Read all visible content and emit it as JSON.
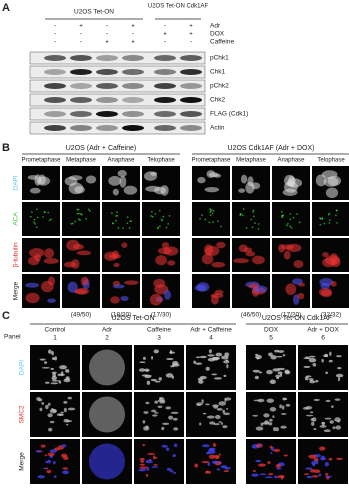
{
  "panel_a": {
    "label": "A",
    "groups": [
      "U2OS Tet-ON",
      "U2OS Tet-ON Cdk1AF"
    ],
    "treatments": [
      {
        "name": "Adr",
        "signs": [
          "-",
          "+",
          "-",
          "+",
          "-",
          "+"
        ]
      },
      {
        "name": "DOX",
        "signs": [
          "-",
          "-",
          "-",
          "-",
          "+",
          "+"
        ]
      },
      {
        "name": "Caffeine",
        "signs": [
          "-",
          "-",
          "+",
          "+",
          "-",
          "-"
        ]
      }
    ],
    "blots": [
      "pChk1",
      "Chk1",
      "pChk2",
      "Chk2",
      "FLAG (Cdk1)",
      "Actin"
    ]
  },
  "panel_b": {
    "label": "B",
    "groups": [
      "U2OS (Adr + Caffeine)",
      "U2OS Cdk1AF (Adr + DOX)"
    ],
    "phases": [
      "Prometaphase",
      "Metaphase",
      "Anaphase",
      "Telophase",
      "Prometaphase",
      "Metaphase",
      "Anaphase",
      "Telophase"
    ],
    "stains": [
      "DAPI",
      "ACA",
      "β-tubulin",
      "Merge"
    ],
    "counts": [
      "(49/50)",
      "(18/20)",
      "(17/30)",
      "(46/50)",
      "(17/20)",
      "(32/32)"
    ]
  },
  "panel_c": {
    "label": "C",
    "groups": [
      "U2OS Tet-ON",
      "U2OS Tet-ON Cdk1AF"
    ],
    "panel_heading": "Panel",
    "conditions": [
      "Control",
      "Adr",
      "Caffeine",
      "Adr + Caffeine",
      "DOX",
      "Adr + DOX"
    ],
    "panel_numbers": [
      "1",
      "2",
      "3",
      "4",
      "5",
      "6"
    ],
    "stains": [
      "DAPI",
      "SMC2",
      "Merge"
    ]
  }
}
